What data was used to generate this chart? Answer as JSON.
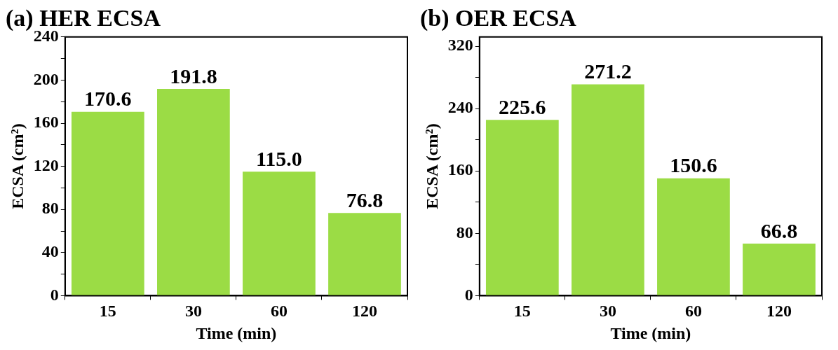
{
  "chart_data": [
    {
      "type": "bar",
      "title": "(a) HER ECSA",
      "xlabel": "Time (min)",
      "ylabel": "ECSA (cm²)",
      "categories": [
        "15",
        "30",
        "60",
        "120"
      ],
      "values": [
        170.6,
        191.8,
        115.0,
        76.8
      ],
      "value_labels": [
        "170.6",
        "191.8",
        "115.0",
        "76.8"
      ],
      "color": "#9bdc45",
      "ylim": [
        0,
        240
      ],
      "yticks": [
        0,
        {
          "value": 20,
          "label": null
        },
        40,
        {
          "value": 60,
          "label": null
        },
        80,
        {
          "value": 100,
          "label": null
        },
        120,
        {
          "value": 140,
          "label": null
        },
        160,
        {
          "value": 180,
          "label": null
        },
        200,
        {
          "value": 220,
          "label": null
        },
        240
      ],
      "grid": false,
      "legend": false
    },
    {
      "type": "bar",
      "title": "(b) OER ECSA",
      "xlabel": "Time (min)",
      "ylabel": "ECSA (cm²)",
      "categories": [
        "15",
        "30",
        "60",
        "120"
      ],
      "values": [
        225.6,
        271.2,
        150.6,
        66.8
      ],
      "value_labels": [
        "225.6",
        "271.2",
        "150.6",
        "66.8"
      ],
      "color": "#9bdc45",
      "ylim": [
        0,
        332
      ],
      "yticks": [
        0,
        {
          "value": 40,
          "label": null
        },
        80,
        {
          "value": 120,
          "label": null
        },
        160,
        {
          "value": 200,
          "label": null
        },
        240,
        {
          "value": 280,
          "label": null
        },
        320
      ],
      "grid": false,
      "legend": false
    }
  ]
}
